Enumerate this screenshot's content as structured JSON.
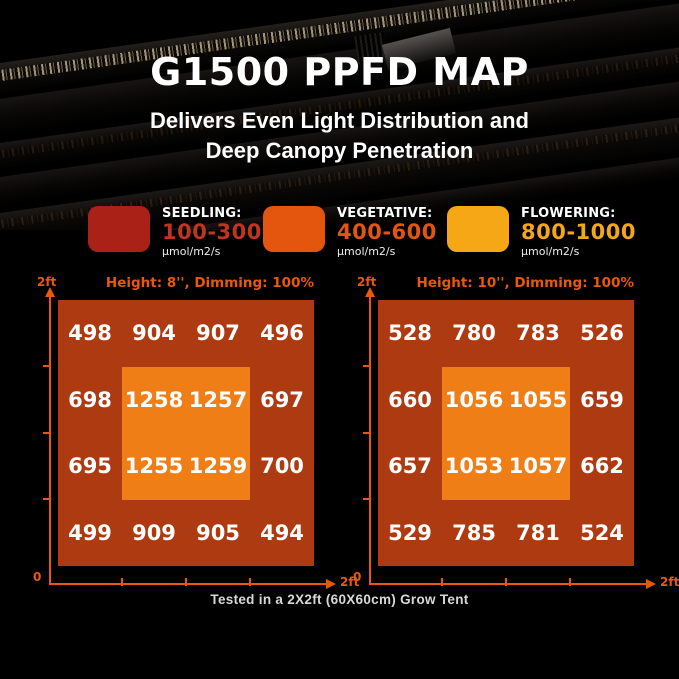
{
  "theme": {
    "background": "#000000",
    "accent_orange": "#E8580E",
    "title_color": "#FFFFFF",
    "footer_color": "#D8D8D8",
    "value_text_color": "#FFFFFF"
  },
  "header": {
    "title": "G1500 PPFD MAP",
    "subtitle_line1": "Delivers Even Light Distribution and",
    "subtitle_line2": "Deep Canopy Penetration"
  },
  "legend": {
    "items": [
      {
        "label": "SEEDLING:",
        "range": "100-300",
        "unit": "μmol/m2/s",
        "swatch_color": "#A92117",
        "range_color": "#C23322"
      },
      {
        "label": "VEGETATIVE:",
        "range": "400-600",
        "unit": "μmol/m2/s",
        "swatch_color": "#E4560E",
        "range_color": "#E4560E"
      },
      {
        "label": "FLOWERING:",
        "range": "800-1000",
        "unit": "μmol/m2/s",
        "swatch_color": "#F6A716",
        "range_color": "#F6A716"
      }
    ]
  },
  "chart_data": [
    {
      "type": "heatmap",
      "title": "Height: 8'', Dimming: 100%",
      "values": [
        [
          498,
          904,
          907,
          496
        ],
        [
          698,
          1258,
          1257,
          697
        ],
        [
          695,
          1255,
          1259,
          700
        ],
        [
          499,
          909,
          905,
          494
        ]
      ],
      "unit": "μmol/m2/s",
      "x_axis": {
        "min_label": "0",
        "max_label": "2ft",
        "range_ft": [
          0,
          2
        ],
        "ticks": 3
      },
      "y_axis": {
        "max_label": "2ft",
        "range_ft": [
          0,
          2
        ],
        "ticks": 3
      },
      "colors": {
        "outer": "#AD3A10",
        "inner": "#F07E16"
      },
      "highlight_zone": {
        "rows": [
          2,
          3
        ],
        "cols": [
          2,
          3
        ]
      }
    },
    {
      "type": "heatmap",
      "title": "Height: 10'', Dimming: 100%",
      "values": [
        [
          528,
          780,
          783,
          526
        ],
        [
          660,
          1056,
          1055,
          659
        ],
        [
          657,
          1053,
          1057,
          662
        ],
        [
          529,
          785,
          781,
          524
        ]
      ],
      "unit": "μmol/m2/s",
      "x_axis": {
        "min_label": "0",
        "max_label": "2ft",
        "range_ft": [
          0,
          2
        ],
        "ticks": 3
      },
      "y_axis": {
        "max_label": "2ft",
        "range_ft": [
          0,
          2
        ],
        "ticks": 3
      },
      "colors": {
        "outer": "#AD3A10",
        "inner": "#F07E16"
      },
      "highlight_zone": {
        "rows": [
          2,
          3
        ],
        "cols": [
          2,
          3
        ]
      }
    }
  ],
  "footer": {
    "caption": "Tested in a 2X2ft (60X60cm) Grow Tent"
  }
}
